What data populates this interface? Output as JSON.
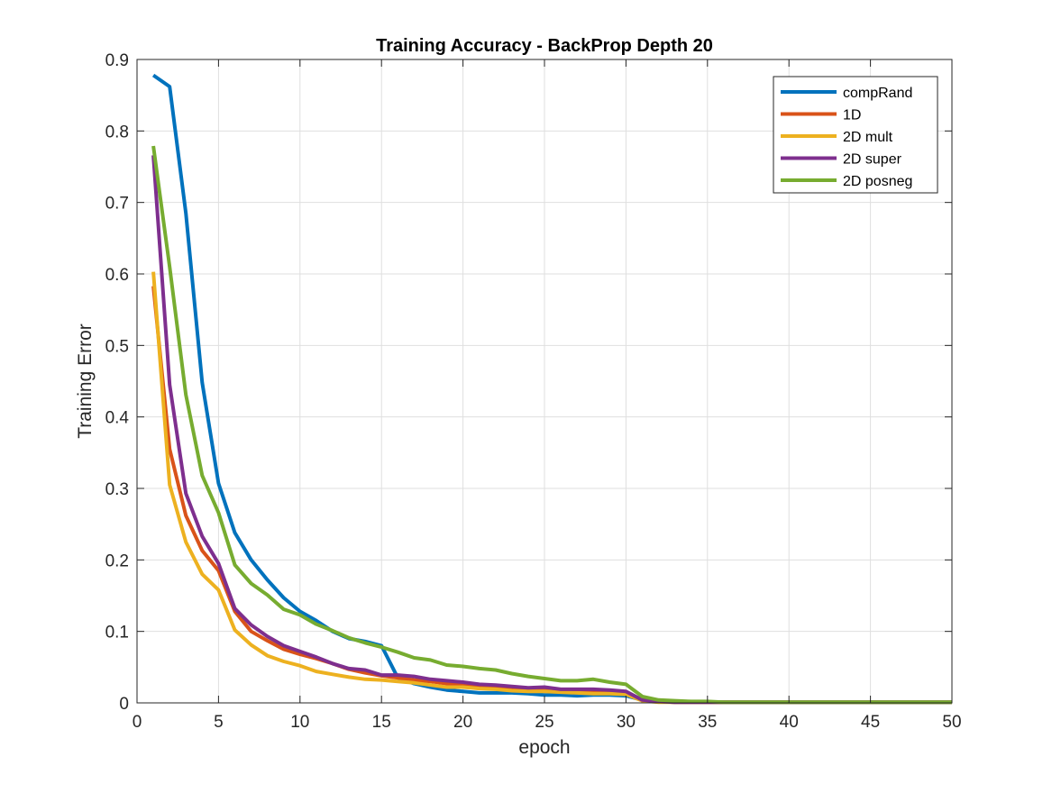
{
  "chart_data": {
    "type": "line",
    "title": "Training Accuracy - BackProp Depth 20",
    "xlabel": "epoch",
    "ylabel": "Training Error",
    "xlim": [
      0,
      50
    ],
    "ylim": [
      0,
      0.9
    ],
    "xticks": [
      "0",
      "5",
      "10",
      "15",
      "20",
      "25",
      "30",
      "35",
      "40",
      "45",
      "50"
    ],
    "yticks": [
      "0",
      "0.1",
      "0.2",
      "0.3",
      "0.4",
      "0.5",
      "0.6",
      "0.7",
      "0.8",
      "0.9"
    ],
    "grid": true,
    "legend_position": "top-right",
    "x": [
      1,
      2,
      3,
      4,
      5,
      6,
      7,
      8,
      9,
      10,
      11,
      12,
      13,
      14,
      15,
      16,
      17,
      18,
      19,
      20,
      21,
      22,
      23,
      24,
      25,
      26,
      27,
      28,
      29,
      30,
      31,
      32,
      33,
      34,
      35,
      36,
      37,
      38,
      39,
      40,
      41,
      42,
      43,
      44,
      45,
      46,
      47,
      48,
      49,
      50
    ],
    "series": [
      {
        "name": "compRand",
        "color": "#0072BD",
        "values": [
          0.878,
          0.862,
          0.685,
          0.448,
          0.307,
          0.238,
          0.2,
          0.172,
          0.147,
          0.128,
          0.115,
          0.1,
          0.09,
          0.086,
          0.08,
          0.035,
          0.027,
          0.022,
          0.018,
          0.016,
          0.014,
          0.014,
          0.014,
          0.013,
          0.011,
          0.011,
          0.01,
          0.011,
          0.011,
          0.01,
          0.004,
          0.002,
          0.001,
          0.001,
          0.001,
          0.001,
          0.001,
          0.001,
          0.001,
          0.001,
          0.001,
          0.001,
          0.001,
          0.001,
          0.001,
          0.001,
          0.001,
          0.001,
          0.001,
          0.001
        ]
      },
      {
        "name": "1D",
        "color": "#D95319",
        "values": [
          0.583,
          0.355,
          0.262,
          0.213,
          0.185,
          0.128,
          0.1,
          0.087,
          0.075,
          0.068,
          0.062,
          0.055,
          0.047,
          0.042,
          0.038,
          0.035,
          0.032,
          0.03,
          0.027,
          0.025,
          0.023,
          0.021,
          0.02,
          0.019,
          0.018,
          0.017,
          0.016,
          0.016,
          0.015,
          0.014,
          0.004,
          0.002,
          0.001,
          0.001,
          0.001,
          0.001,
          0.001,
          0.001,
          0.001,
          0.001,
          0.001,
          0.001,
          0.001,
          0.001,
          0.001,
          0.001,
          0.001,
          0.001,
          0.001,
          0.001
        ]
      },
      {
        "name": "2D mult",
        "color": "#EDB120",
        "values": [
          0.603,
          0.305,
          0.225,
          0.18,
          0.158,
          0.102,
          0.081,
          0.066,
          0.058,
          0.052,
          0.044,
          0.04,
          0.036,
          0.033,
          0.032,
          0.03,
          0.028,
          0.025,
          0.022,
          0.022,
          0.02,
          0.019,
          0.017,
          0.016,
          0.016,
          0.015,
          0.014,
          0.013,
          0.013,
          0.012,
          0.003,
          0.001,
          0.001,
          0.001,
          0.001,
          0.001,
          0.001,
          0.001,
          0.001,
          0.001,
          0.001,
          0.001,
          0.001,
          0.001,
          0.001,
          0.001,
          0.001,
          0.001,
          0.001,
          0.001
        ]
      },
      {
        "name": "2D super",
        "color": "#7E2F8E",
        "values": [
          0.766,
          0.445,
          0.293,
          0.233,
          0.195,
          0.132,
          0.109,
          0.093,
          0.08,
          0.072,
          0.064,
          0.055,
          0.048,
          0.046,
          0.039,
          0.039,
          0.037,
          0.033,
          0.031,
          0.029,
          0.026,
          0.025,
          0.023,
          0.021,
          0.022,
          0.019,
          0.019,
          0.019,
          0.018,
          0.016,
          0.004,
          0.002,
          0.001,
          0.001,
          0.001,
          0.001,
          0.001,
          0.001,
          0.001,
          0.001,
          0.001,
          0.001,
          0.001,
          0.001,
          0.001,
          0.001,
          0.001,
          0.001,
          0.001,
          0.001
        ]
      },
      {
        "name": "2D posneg",
        "color": "#77AC30",
        "values": [
          0.779,
          0.61,
          0.431,
          0.318,
          0.266,
          0.193,
          0.167,
          0.151,
          0.131,
          0.123,
          0.11,
          0.101,
          0.091,
          0.084,
          0.078,
          0.071,
          0.063,
          0.06,
          0.053,
          0.051,
          0.048,
          0.046,
          0.041,
          0.037,
          0.034,
          0.031,
          0.031,
          0.033,
          0.029,
          0.026,
          0.009,
          0.004,
          0.003,
          0.002,
          0.002,
          0.001,
          0.001,
          0.001,
          0.001,
          0.001,
          0.001,
          0.001,
          0.001,
          0.001,
          0.001,
          0.001,
          0.001,
          0.001,
          0.001,
          0.001
        ]
      }
    ]
  }
}
